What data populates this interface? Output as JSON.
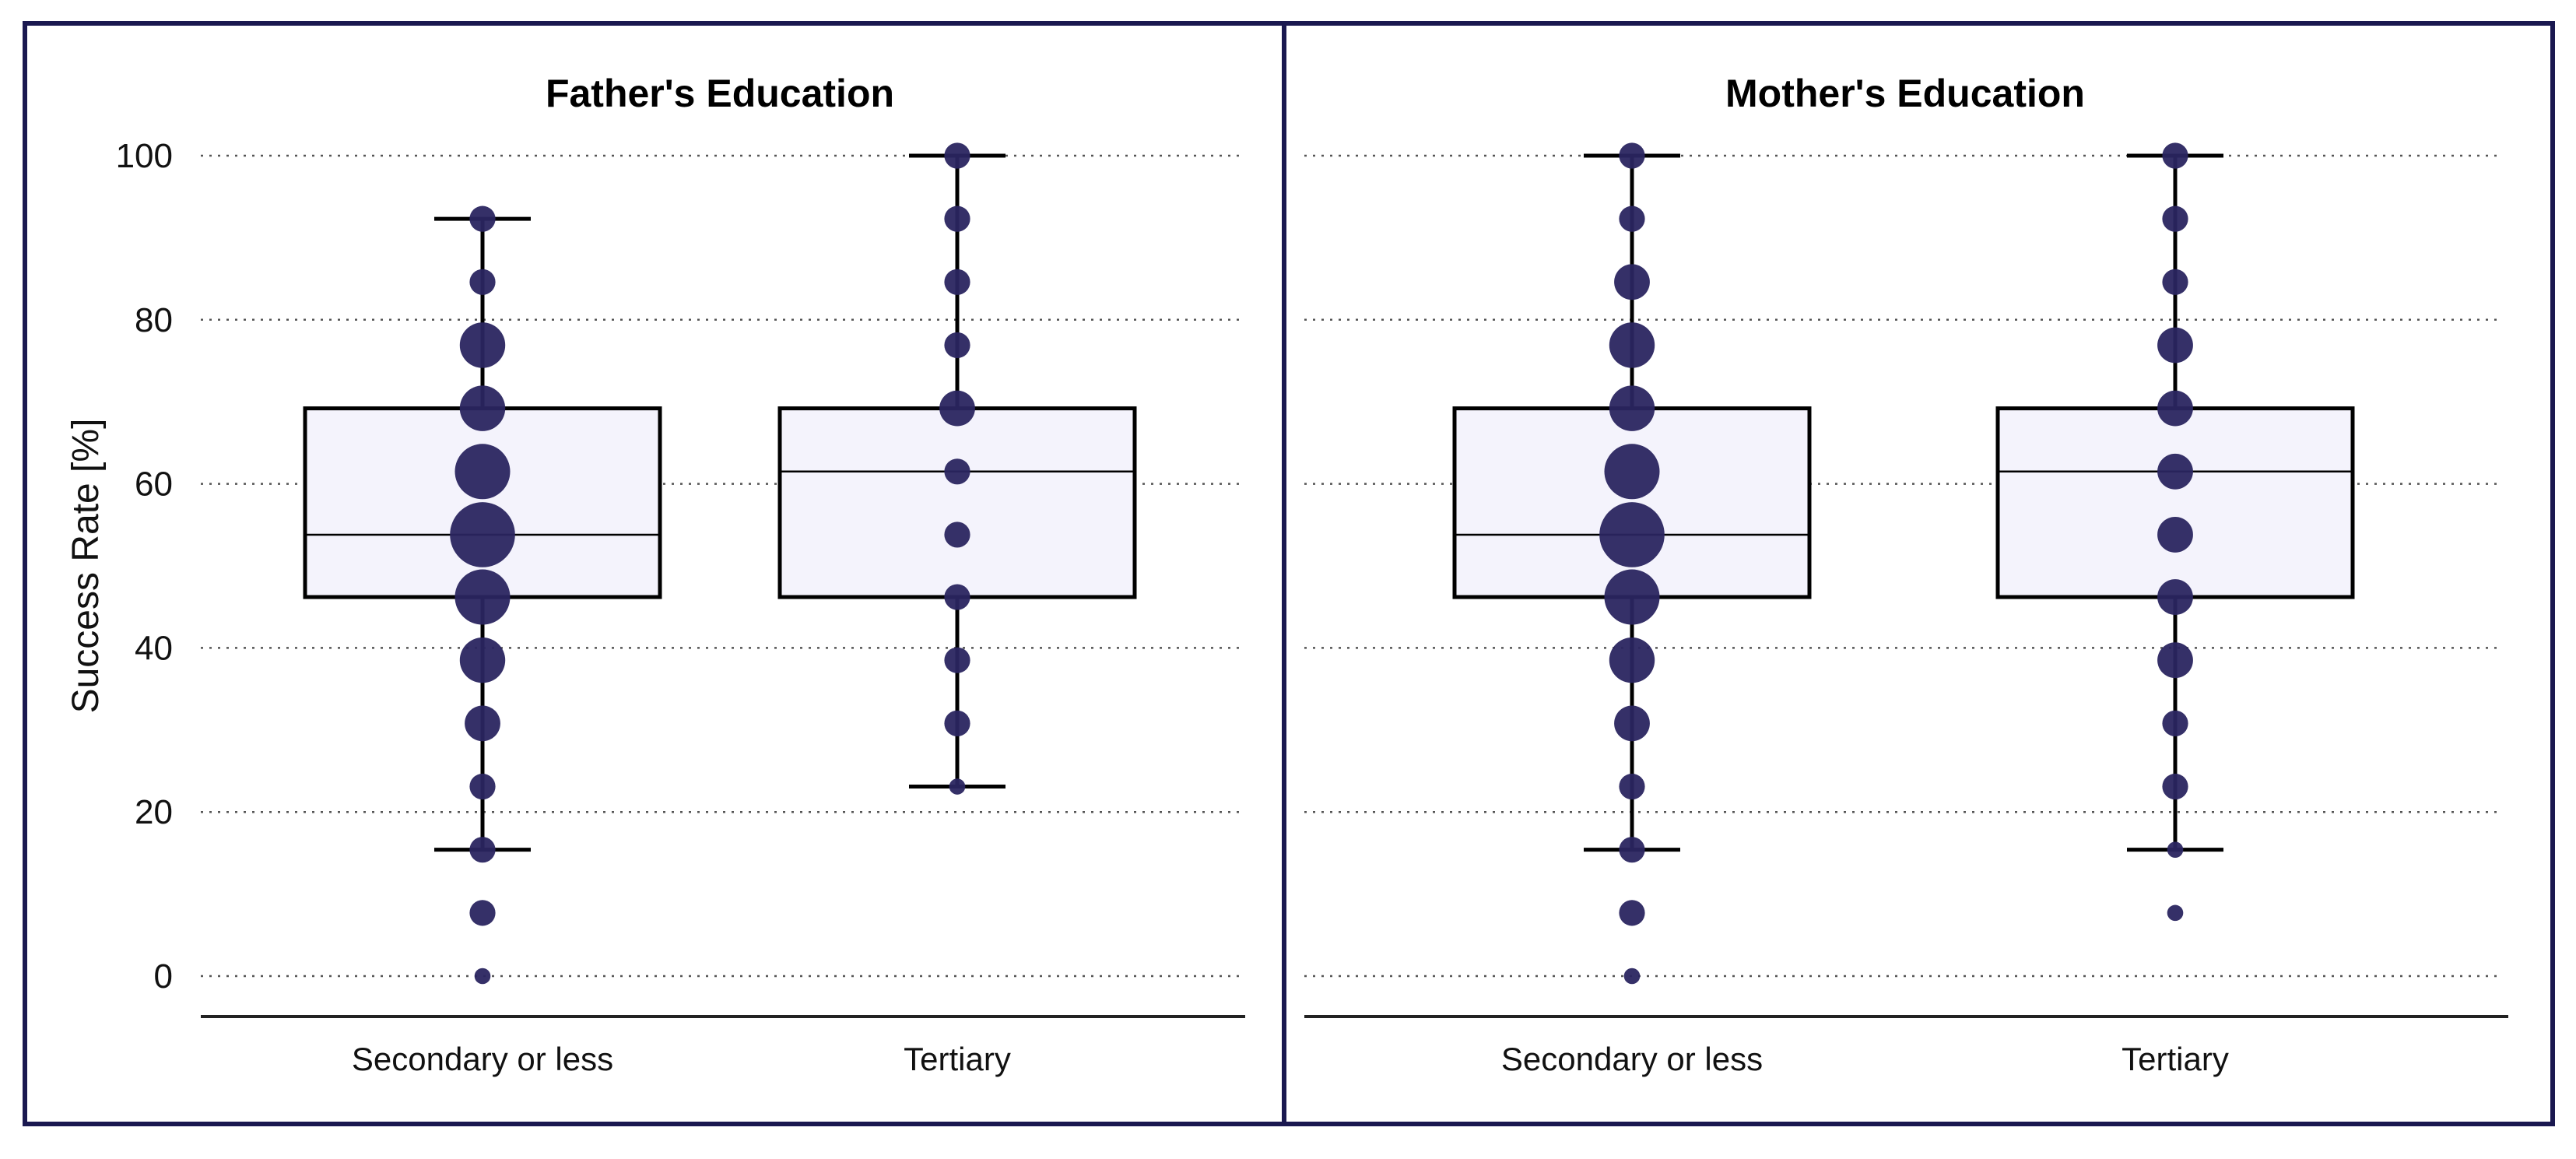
{
  "chart_data": {
    "type": "box",
    "ylabel": "Success Rate [%]",
    "ylim": [
      0,
      100
    ],
    "yticks": [
      0,
      20,
      40,
      60,
      80,
      100
    ],
    "grid": "horizontal-dotted",
    "colors": {
      "frame": "#1a1850",
      "box_fill": "#f4f3fc",
      "point": "#2a2560",
      "line": "#000000",
      "grid": "#555555"
    },
    "panels": [
      {
        "title": "Father's Education",
        "groups": [
          {
            "name": "Secondary or less",
            "whisker_low": 15.4,
            "q1": 46.2,
            "median": 53.8,
            "q3": 69.2,
            "whisker_high": 92.3,
            "points": [
              {
                "y": 0,
                "size": 1
              },
              {
                "y": 7.7,
                "size": 2
              },
              {
                "y": 15.4,
                "size": 2
              },
              {
                "y": 23.1,
                "size": 2
              },
              {
                "y": 30.8,
                "size": 3
              },
              {
                "y": 38.5,
                "size": 4
              },
              {
                "y": 46.2,
                "size": 5
              },
              {
                "y": 53.8,
                "size": 6
              },
              {
                "y": 61.5,
                "size": 5
              },
              {
                "y": 69.2,
                "size": 4
              },
              {
                "y": 76.9,
                "size": 4
              },
              {
                "y": 84.6,
                "size": 2
              },
              {
                "y": 92.3,
                "size": 2
              }
            ]
          },
          {
            "name": "Tertiary",
            "whisker_low": 23.1,
            "q1": 46.2,
            "median": 61.5,
            "q3": 69.2,
            "whisker_high": 100,
            "points": [
              {
                "y": 23.1,
                "size": 1
              },
              {
                "y": 30.8,
                "size": 2
              },
              {
                "y": 38.5,
                "size": 2
              },
              {
                "y": 46.2,
                "size": 2
              },
              {
                "y": 53.8,
                "size": 2
              },
              {
                "y": 61.5,
                "size": 2
              },
              {
                "y": 69.2,
                "size": 3
              },
              {
                "y": 76.9,
                "size": 2
              },
              {
                "y": 84.6,
                "size": 2
              },
              {
                "y": 92.3,
                "size": 2
              },
              {
                "y": 100,
                "size": 2
              }
            ]
          }
        ]
      },
      {
        "title": "Mother's Education",
        "groups": [
          {
            "name": "Secondary or less",
            "whisker_low": 15.4,
            "q1": 46.2,
            "median": 53.8,
            "q3": 69.2,
            "whisker_high": 100,
            "points": [
              {
                "y": 0,
                "size": 1
              },
              {
                "y": 7.7,
                "size": 2
              },
              {
                "y": 15.4,
                "size": 2
              },
              {
                "y": 23.1,
                "size": 2
              },
              {
                "y": 30.8,
                "size": 3
              },
              {
                "y": 38.5,
                "size": 4
              },
              {
                "y": 46.2,
                "size": 5
              },
              {
                "y": 53.8,
                "size": 6
              },
              {
                "y": 61.5,
                "size": 5
              },
              {
                "y": 69.2,
                "size": 4
              },
              {
                "y": 76.9,
                "size": 4
              },
              {
                "y": 84.6,
                "size": 3
              },
              {
                "y": 92.3,
                "size": 2
              },
              {
                "y": 100,
                "size": 2
              }
            ]
          },
          {
            "name": "Tertiary",
            "whisker_low": 15.4,
            "q1": 46.2,
            "median": 61.5,
            "q3": 69.2,
            "whisker_high": 100,
            "points": [
              {
                "y": 7.7,
                "size": 1
              },
              {
                "y": 15.4,
                "size": 1
              },
              {
                "y": 23.1,
                "size": 2
              },
              {
                "y": 30.8,
                "size": 2
              },
              {
                "y": 38.5,
                "size": 3
              },
              {
                "y": 46.2,
                "size": 3
              },
              {
                "y": 53.8,
                "size": 3
              },
              {
                "y": 61.5,
                "size": 3
              },
              {
                "y": 69.2,
                "size": 3
              },
              {
                "y": 76.9,
                "size": 3
              },
              {
                "y": 84.6,
                "size": 2
              },
              {
                "y": 92.3,
                "size": 2
              },
              {
                "y": 100,
                "size": 2
              }
            ]
          }
        ]
      }
    ]
  }
}
